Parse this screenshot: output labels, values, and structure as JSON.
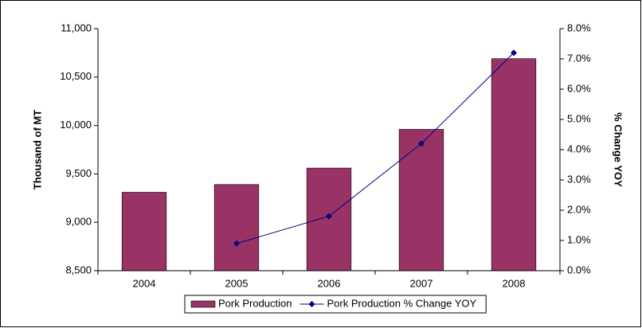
{
  "chart_data": {
    "type": "bar_line",
    "categories": [
      "2004",
      "2005",
      "2006",
      "2007",
      "2008"
    ],
    "series": [
      {
        "name": "Pork Production",
        "color": "#993366",
        "values": [
          9310,
          9390,
          9560,
          9960,
          10690
        ]
      },
      {
        "name": "Pork Production % Change YOY",
        "color": "#000080",
        "axis": "y2",
        "values": [
          null,
          0.9,
          1.8,
          4.2,
          7.2
        ]
      }
    ],
    "ylabel": "Thousand of MT",
    "y2label": "% Change YOY",
    "ylim": [
      8500,
      11000
    ],
    "yticks": [
      {
        "value": 8500,
        "label": "8,500"
      },
      {
        "value": 9000,
        "label": "9,000"
      },
      {
        "value": 9500,
        "label": "9,500"
      },
      {
        "value": 10000,
        "label": "10,000"
      },
      {
        "value": 10500,
        "label": "10,500"
      },
      {
        "value": 11000,
        "label": "11,000"
      }
    ],
    "y2lim": [
      0,
      8
    ],
    "y2ticks": [
      {
        "value": 0,
        "label": "0.0%"
      },
      {
        "value": 1,
        "label": "1.0%"
      },
      {
        "value": 2,
        "label": "2.0%"
      },
      {
        "value": 3,
        "label": "3.0%"
      },
      {
        "value": 4,
        "label": "4.0%"
      },
      {
        "value": 5,
        "label": "5.0%"
      },
      {
        "value": 6,
        "label": "6.0%"
      },
      {
        "value": 7,
        "label": "7.0%"
      },
      {
        "value": 8,
        "label": "8.0%"
      }
    ],
    "legend": "bottom"
  }
}
